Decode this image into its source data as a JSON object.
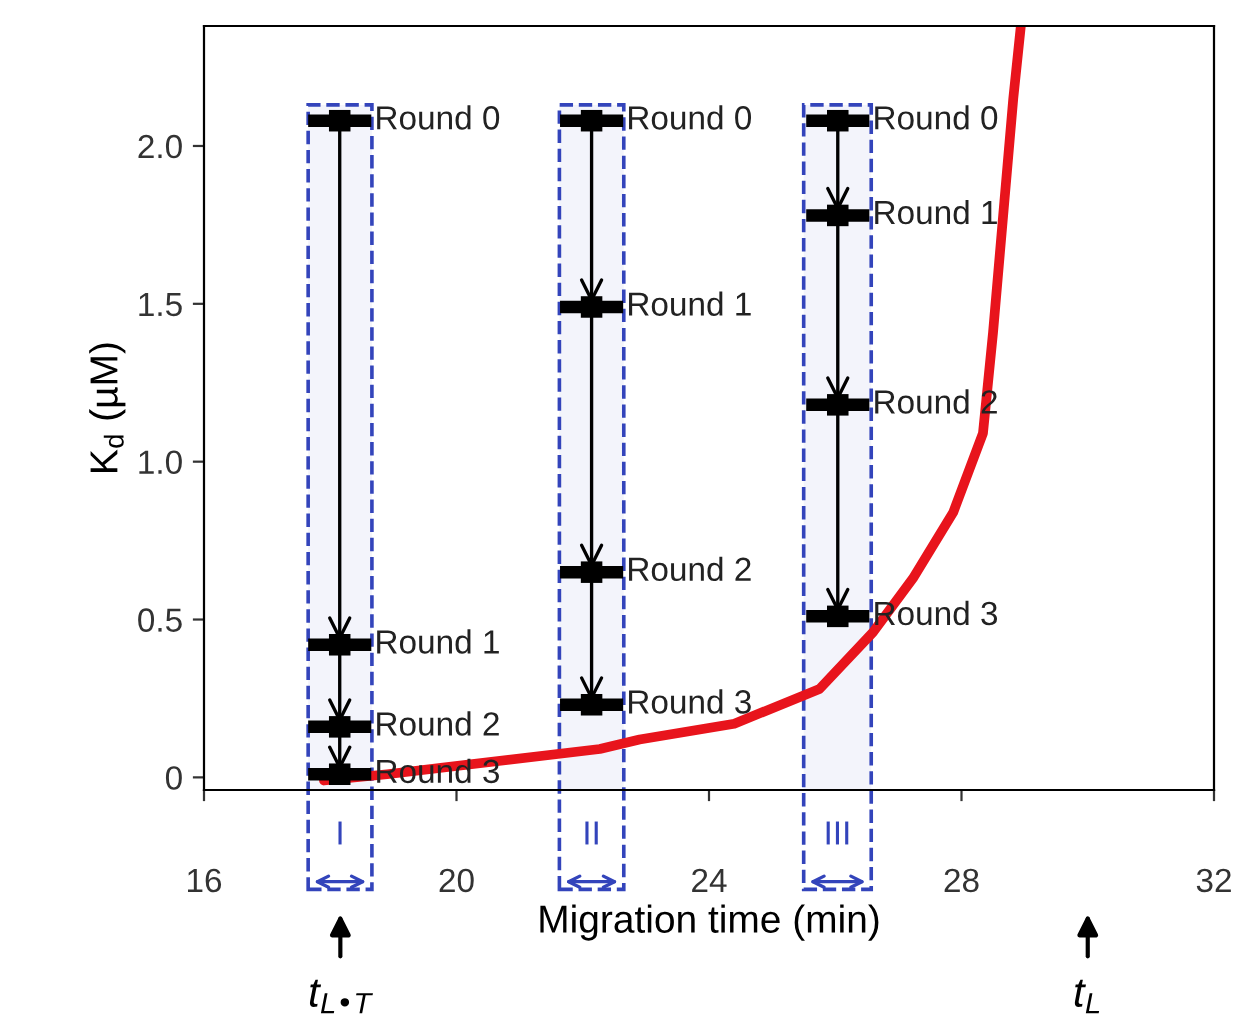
{
  "chart_data": {
    "type": "line",
    "xlabel": "Migration time (min)",
    "ylabel": "K$_{d}$ (µM)",
    "xlim": [
      16,
      32
    ],
    "xticks": [
      16,
      20,
      24,
      28,
      32
    ],
    "ylim": [
      -0.04,
      2.38
    ],
    "yticks": [
      {
        "value": 0,
        "label": "0"
      },
      0.5,
      {
        "value": 1.0,
        "label": "1.0"
      },
      1.5,
      {
        "value": 2.0,
        "label": "2.0"
      }
    ],
    "grid": false,
    "series": [
      {
        "color": "#e8141c",
        "x": [
          17.9,
          18.9,
          22.27,
          22.9,
          24.4,
          25.75,
          26.6,
          27.23,
          27.87,
          28.34,
          28.5,
          28.66,
          28.82,
          28.94
        ],
        "values": [
          -0.01,
          0.01,
          0.09,
          0.12,
          0.17,
          0.28,
          0.46,
          0.63,
          0.84,
          1.09,
          1.41,
          1.78,
          2.15,
          2.38
        ]
      },
      {
        "type": "scatter",
        "color": "#000000",
        "marker": "square",
        "x": [
          18.15,
          18.15,
          18.15,
          18.15
        ],
        "values": [
          2.08,
          0.42,
          0.16,
          0.01
        ],
        "xerrors": [
          0.5,
          0.5,
          0.5,
          0.5
        ],
        "value_labels": [
          "Round 0",
          "Round 1",
          "Round 2",
          "Round 3"
        ]
      },
      {
        "type": "scatter",
        "color": "#000000",
        "marker": "square",
        "x": [
          22.14,
          22.14,
          22.14,
          22.14
        ],
        "values": [
          2.08,
          1.49,
          0.65,
          0.23
        ],
        "xerrors": [
          0.5,
          0.5,
          0.5,
          0.5
        ],
        "value_labels": [
          "Round 0",
          "Round 1",
          "Round 2",
          "Round 3"
        ]
      },
      {
        "type": "scatter",
        "color": "#000000",
        "marker": "square",
        "x": [
          26.04,
          26.04,
          26.04,
          26.04
        ],
        "values": [
          2.08,
          1.78,
          1.18,
          0.51
        ],
        "xerrors": [
          0.5,
          0.5,
          0.5,
          0.5
        ],
        "value_labels": [
          "Round 0",
          "Round 1",
          "Round 2",
          "Round 3"
        ]
      }
    ],
    "bands": [
      {
        "axis": "x",
        "from": 17.65,
        "to": 18.66,
        "label": "I",
        "color": "#3344bb"
      },
      {
        "axis": "x",
        "from": 21.63,
        "to": 22.65,
        "label": "II",
        "color": "#3344bb"
      },
      {
        "axis": "x",
        "from": 25.5,
        "to": 26.57,
        "label": "III",
        "color": "#3344bb"
      }
    ],
    "annotations": [
      "t$_{L•T}$",
      "t$_{L}$"
    ]
  }
}
